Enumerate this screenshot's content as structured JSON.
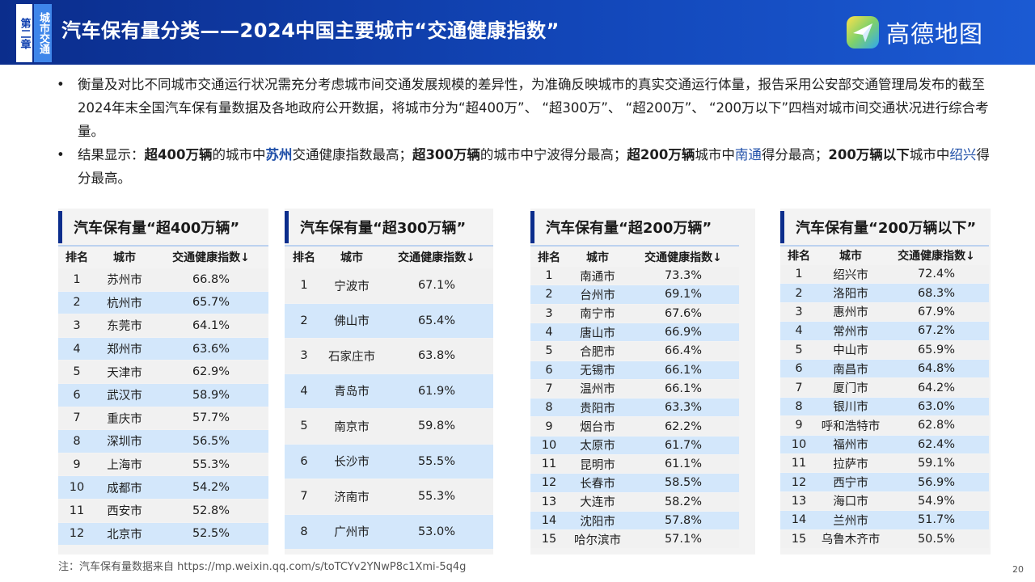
{
  "header": {
    "chapter_num": "第二章",
    "chapter_name": "城市交通",
    "title": "汽车保有量分类——2024中国主要城市“交通健康指数”",
    "logo_text": "高德地图",
    "colors": {
      "header": "#0b2d8c",
      "accent": "#3f86ea"
    }
  },
  "bullets": [
    {
      "parts": [
        {
          "t": "衡量及对比不同城市交通运行状况需充分考虑城市间交通发展规模的差异性，为准确反映城市的真实交通运行体量，报告采用公安部交通管理局发布的截至2024年末全国汽车保有量数据及各地政府公开数据，将城市分为“超400万”、 “超300万”、 “超200万”、 “200万以下”四档对城市间交通状况进行综合考量。",
          "s": "n"
        }
      ]
    },
    {
      "parts": [
        {
          "t": "结果显示：",
          "s": "n"
        },
        {
          "t": "超400万辆",
          "s": "b"
        },
        {
          "t": "的城市中",
          "s": "n"
        },
        {
          "t": "苏州",
          "s": "hb"
        },
        {
          "t": "交通健康指数最高；",
          "s": "n"
        },
        {
          "t": "超300万辆",
          "s": "b"
        },
        {
          "t": "的城市中宁波得分最高；",
          "s": "n"
        },
        {
          "t": "超200万辆",
          "s": "b"
        },
        {
          "t": "城市中",
          "s": "n"
        },
        {
          "t": "南通",
          "s": "h"
        },
        {
          "t": "得分最高；",
          "s": "n"
        },
        {
          "t": "200万辆以下",
          "s": "b"
        },
        {
          "t": "城市中",
          "s": "n"
        },
        {
          "t": "绍兴",
          "s": "h"
        },
        {
          "t": "得分最高。",
          "s": "n"
        }
      ]
    }
  ],
  "tables": [
    {
      "title": "汽车保有量“超400万辆”",
      "headers": [
        "排名",
        "城市",
        "交通健康指数↓"
      ],
      "rows": [
        [
          "1",
          "苏州市",
          "66.8%"
        ],
        [
          "2",
          "杭州市",
          "65.7%"
        ],
        [
          "3",
          "东莞市",
          "64.1%"
        ],
        [
          "4",
          "郑州市",
          "63.6%"
        ],
        [
          "5",
          "天津市",
          "62.9%"
        ],
        [
          "6",
          "武汉市",
          "58.9%"
        ],
        [
          "7",
          "重庆市",
          "57.7%"
        ],
        [
          "8",
          "深圳市",
          "56.5%"
        ],
        [
          "9",
          "上海市",
          "55.3%"
        ],
        [
          "10",
          "成都市",
          "54.2%"
        ],
        [
          "11",
          "西安市",
          "52.8%"
        ],
        [
          "12",
          "北京市",
          "52.5%"
        ]
      ]
    },
    {
      "title": "汽车保有量“超300万辆”",
      "headers": [
        "排名",
        "城市",
        "交通健康指数↓"
      ],
      "rows": [
        [
          "1",
          "宁波市",
          "67.1%"
        ],
        [
          "2",
          "佛山市",
          "65.4%"
        ],
        [
          "3",
          "石家庄市",
          "63.8%"
        ],
        [
          "4",
          "青岛市",
          "61.9%"
        ],
        [
          "5",
          "南京市",
          "59.8%"
        ],
        [
          "6",
          "长沙市",
          "55.5%"
        ],
        [
          "7",
          "济南市",
          "55.3%"
        ],
        [
          "8",
          "广州市",
          "53.0%"
        ]
      ]
    },
    {
      "title": "汽车保有量“超200万辆”",
      "headers": [
        "排名",
        "城市",
        "交通健康指数↓"
      ],
      "rows": [
        [
          "1",
          "南通市",
          "73.3%"
        ],
        [
          "2",
          "台州市",
          "69.1%"
        ],
        [
          "3",
          "南宁市",
          "67.6%"
        ],
        [
          "4",
          "唐山市",
          "66.9%"
        ],
        [
          "5",
          "合肥市",
          "66.4%"
        ],
        [
          "6",
          "无锡市",
          "66.1%"
        ],
        [
          "7",
          "温州市",
          "66.1%"
        ],
        [
          "8",
          "贵阳市",
          "63.3%"
        ],
        [
          "9",
          "烟台市",
          "62.2%"
        ],
        [
          "10",
          "太原市",
          "61.7%"
        ],
        [
          "11",
          "昆明市",
          "61.1%"
        ],
        [
          "12",
          "长春市",
          "58.5%"
        ],
        [
          "13",
          "大连市",
          "58.2%"
        ],
        [
          "14",
          "沈阳市",
          "57.8%"
        ],
        [
          "15",
          "哈尔滨市",
          "57.1%"
        ]
      ]
    },
    {
      "title": "汽车保有量“200万辆以下”",
      "headers": [
        "排名",
        "城市",
        "交通健康指数↓"
      ],
      "rows": [
        [
          "1",
          "绍兴市",
          "72.4%"
        ],
        [
          "2",
          "洛阳市",
          "68.3%"
        ],
        [
          "3",
          "惠州市",
          "67.9%"
        ],
        [
          "4",
          "常州市",
          "67.2%"
        ],
        [
          "5",
          "中山市",
          "65.9%"
        ],
        [
          "6",
          "南昌市",
          "64.8%"
        ],
        [
          "7",
          "厦门市",
          "64.2%"
        ],
        [
          "8",
          "银川市",
          "63.0%"
        ],
        [
          "9",
          "呼和浩特市",
          "62.8%"
        ],
        [
          "10",
          "福州市",
          "62.4%"
        ],
        [
          "11",
          "拉萨市",
          "59.1%"
        ],
        [
          "12",
          "西宁市",
          "56.9%"
        ],
        [
          "13",
          "海口市",
          "54.9%"
        ],
        [
          "14",
          "兰州市",
          "51.7%"
        ],
        [
          "15",
          "乌鲁木齐市",
          "50.5%"
        ]
      ]
    }
  ],
  "footnote": "注：汽车保有量数据来自 https://mp.weixin.qq.com/s/toTCYv2YNwP8c1Xmi-5q4g",
  "page_number": "20"
}
